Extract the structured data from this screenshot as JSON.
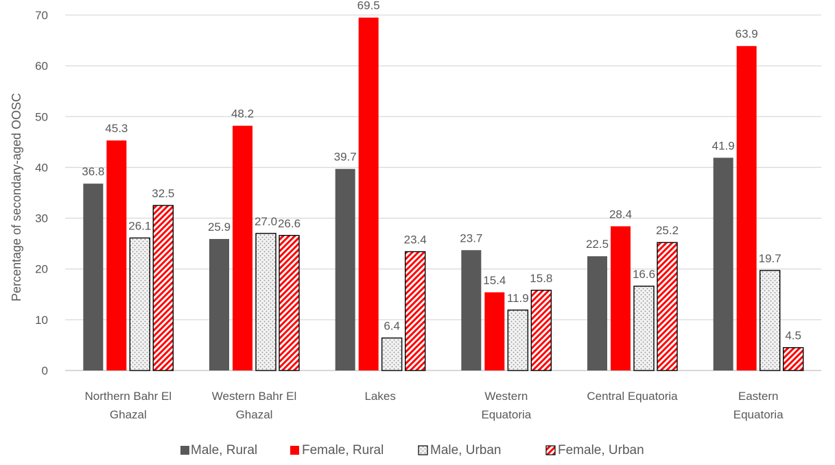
{
  "chart_data": {
    "type": "bar",
    "title": "",
    "xlabel": "",
    "ylabel": "Percentage of secondary-aged OOSC",
    "ylim": [
      0,
      70
    ],
    "yticks": [
      0,
      10,
      20,
      30,
      40,
      50,
      60,
      70
    ],
    "grid": true,
    "legend_position": "bottom",
    "categories": [
      [
        "Northern Bahr El",
        "Ghazal"
      ],
      [
        "Western Bahr El",
        "Ghazal"
      ],
      [
        "Lakes"
      ],
      [
        "Western",
        "Equatoria"
      ],
      [
        "Central Equatoria"
      ],
      [
        "Eastern",
        "Equatoria"
      ]
    ],
    "series": [
      {
        "name": "Male, Rural",
        "values": [
          36.8,
          25.9,
          39.7,
          23.7,
          22.5,
          41.9
        ],
        "color": "#595959",
        "pattern": "solid"
      },
      {
        "name": "Female, Rural",
        "values": [
          45.3,
          48.2,
          69.5,
          15.4,
          28.4,
          63.9
        ],
        "color": "#ff0000",
        "pattern": "solid"
      },
      {
        "name": "Male, Urban",
        "values": [
          26.1,
          27.0,
          6.4,
          11.9,
          16.6,
          19.7
        ],
        "color": "#a6a6a6",
        "pattern": "dots"
      },
      {
        "name": "Female, Urban",
        "values": [
          32.5,
          26.6,
          23.4,
          15.8,
          25.2,
          4.5
        ],
        "color": "#ff0000",
        "pattern": "diagonal"
      }
    ]
  }
}
